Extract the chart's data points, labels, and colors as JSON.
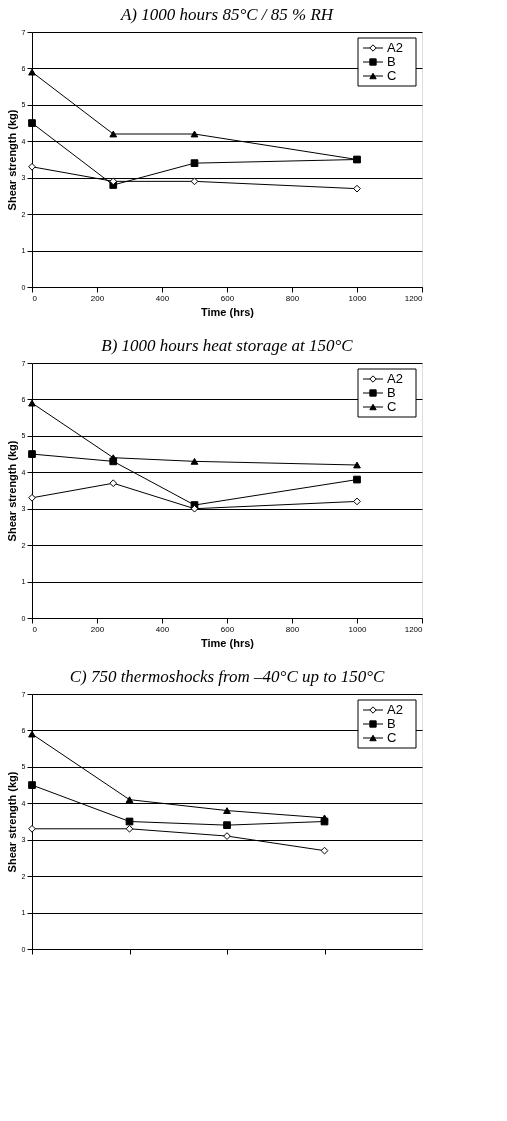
{
  "chart_data": [
    {
      "type": "line",
      "title": "A) 1000 hours 85°C / 85 % RH",
      "xlabel": "Time (hrs)",
      "ylabel": "Shear strength (kg)",
      "x": [
        0,
        250,
        500,
        1000
      ],
      "xlim": [
        0,
        1200
      ],
      "xticks": [
        0,
        200,
        400,
        600,
        800,
        1000,
        1200
      ],
      "ylim": [
        0,
        7
      ],
      "yticks": [
        0,
        1,
        2,
        3,
        4,
        5,
        6,
        7
      ],
      "grid": "y",
      "legend": "top right",
      "series": [
        {
          "name": "A2",
          "color": "#000000",
          "marker": "diamond",
          "values": [
            3.3,
            2.9,
            2.9,
            2.7
          ]
        },
        {
          "name": "B",
          "color": "#000000",
          "marker": "square",
          "values": [
            4.5,
            2.8,
            3.4,
            3.5
          ]
        },
        {
          "name": "C",
          "color": "#000000",
          "marker": "triangle",
          "values": [
            5.9,
            4.2,
            4.2,
            3.5
          ]
        }
      ]
    },
    {
      "type": "line",
      "title": "B) 1000 hours heat storage at 150°C",
      "xlabel": "Time (hrs)",
      "ylabel": "Shear strength (kg)",
      "x": [
        0,
        250,
        500,
        1000
      ],
      "xlim": [
        0,
        1200
      ],
      "xticks": [
        0,
        200,
        400,
        600,
        800,
        1000,
        1200
      ],
      "ylim": [
        0,
        7
      ],
      "yticks": [
        0,
        1,
        2,
        3,
        4,
        5,
        6,
        7
      ],
      "grid": "y",
      "legend": "top right",
      "series": [
        {
          "name": "A2",
          "color": "#000000",
          "marker": "diamond",
          "values": [
            3.3,
            3.7,
            3.0,
            3.2
          ]
        },
        {
          "name": "B",
          "color": "#000000",
          "marker": "square",
          "values": [
            4.5,
            4.3,
            3.1,
            3.8
          ]
        },
        {
          "name": "C",
          "color": "#000000",
          "marker": "triangle",
          "values": [
            5.9,
            4.4,
            4.3,
            4.2
          ]
        }
      ]
    },
    {
      "type": "line",
      "title": "C) 750 thermoshocks from –40°C up to 150°C",
      "ylabel": "Shear strength (kg)",
      "categories": [
        null,
        null,
        null,
        null
      ],
      "ylim": [
        0,
        7
      ],
      "yticks": [
        0,
        1,
        2,
        3,
        4,
        5,
        6,
        7
      ],
      "grid": "y",
      "legend": "top right",
      "tick_labels": "y",
      "series": [
        {
          "name": "A2",
          "color": "#000000",
          "marker": "diamond",
          "values": [
            3.3,
            3.3,
            3.1,
            2.7
          ]
        },
        {
          "name": "B",
          "color": "#000000",
          "marker": "square",
          "values": [
            4.5,
            3.5,
            3.4,
            3.5
          ]
        },
        {
          "name": "C",
          "color": "#000000",
          "marker": "triangle",
          "values": [
            5.9,
            4.1,
            3.8,
            3.6
          ]
        }
      ]
    }
  ]
}
